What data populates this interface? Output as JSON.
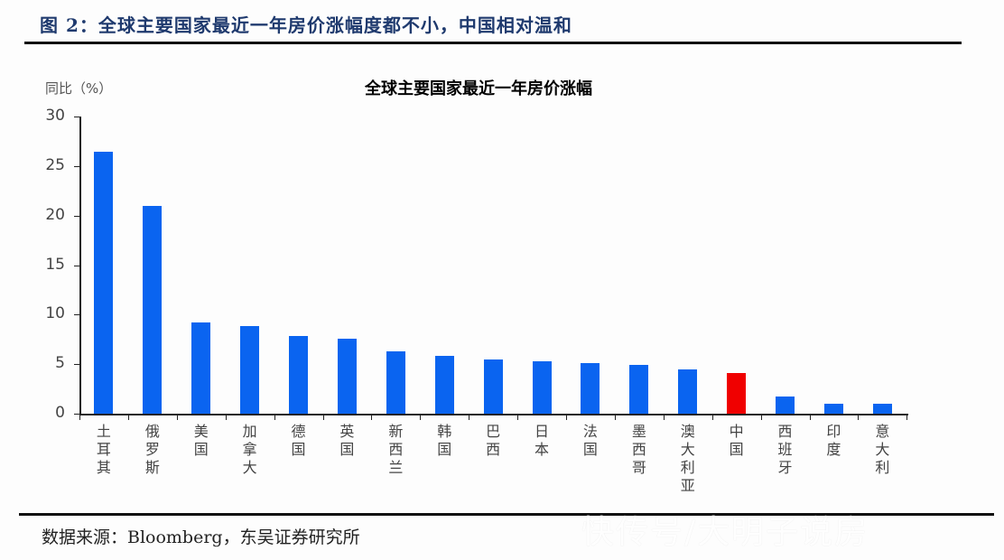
{
  "figure": {
    "title": "图 2：全球主要国家最近一年房价涨幅度都不小，中国相对温和",
    "source": "数据来源：Bloomberg，东吴证券研究所",
    "watermark": "快传号/大明子说房"
  },
  "colors": {
    "bar": "#0a64f0",
    "highlight": "#f00000",
    "title": "#1f3a6e"
  },
  "chart_data": {
    "type": "bar",
    "title": "全球主要国家最近一年房价涨幅",
    "xlabel": "",
    "ylabel": "同比（%）",
    "ylim": [
      0,
      30
    ],
    "yticks": [
      0,
      5,
      10,
      15,
      20,
      25,
      30
    ],
    "grid": false,
    "legend": null,
    "categories": [
      "土耳其",
      "俄罗斯",
      "美国",
      "加拿大",
      "德国",
      "英国",
      "新西兰",
      "韩国",
      "巴西",
      "日本",
      "法国",
      "墨西哥",
      "澳大利亚",
      "中国",
      "西班牙",
      "印度",
      "意大利"
    ],
    "values": [
      26.4,
      21.0,
      9.2,
      8.8,
      7.8,
      7.6,
      6.3,
      5.8,
      5.5,
      5.3,
      5.1,
      4.9,
      4.5,
      4.1,
      1.7,
      1.0,
      1.0
    ],
    "highlight_category": "中国"
  }
}
